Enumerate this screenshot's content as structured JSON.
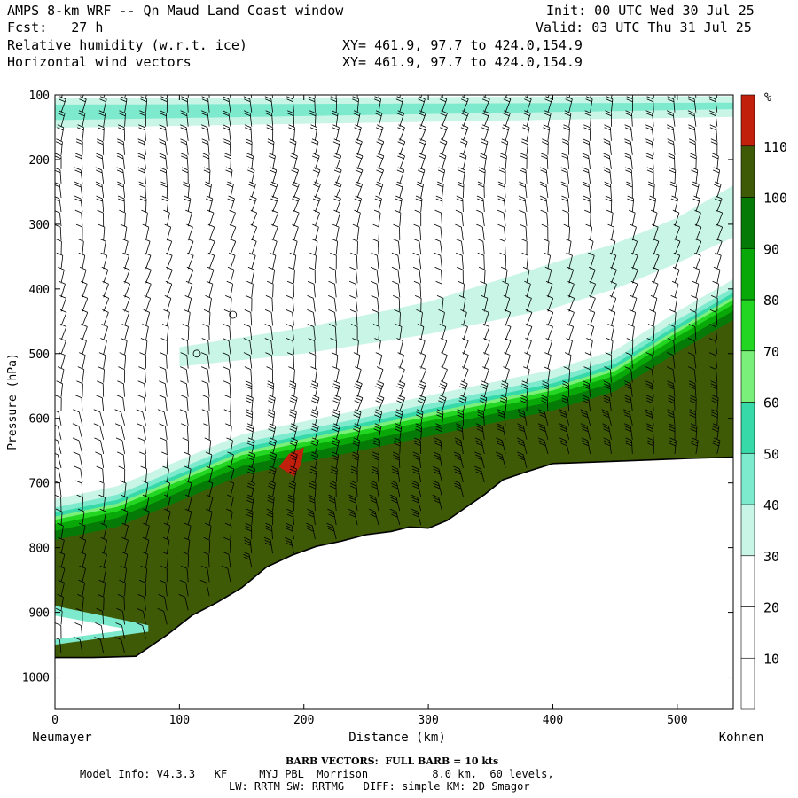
{
  "header": {
    "title": "AMPS 8-km WRF -- Qn Maud Land Coast window",
    "init": "Init: 00 UTC Wed 30 Jul 25",
    "fcst": "Fcst:   27 h",
    "valid": "Valid: 03 UTC Thu 31 Jul 25",
    "field1": "Relative humidity (w.r.t. ice)",
    "field1_xy": "XY= 461.9, 97.7 to 424.0,154.9",
    "field2": "Horizontal wind vectors",
    "field2_xy": "XY= 461.9, 97.7 to 424.0,154.9"
  },
  "footer": {
    "barb": "BARB VECTORS:  FULL BARB = 10 kts",
    "model1": "Model Info: V4.3.3   KF     MYJ PBL  Morrison          8.0 km,  60 levels,",
    "model2": "LW: RRTM SW: RRTMG   DIFF: simple KM: 2D Smagor"
  },
  "chart_data": {
    "type": "heatmap",
    "title": "Relative humidity (w.r.t. ice)",
    "xlabel": "Distance (km)",
    "ylabel": "Pressure (hPa)",
    "x_start_label": "Neumayer",
    "x_end_label": "Kohnen",
    "xlim": [
      0,
      545
    ],
    "ylim": [
      1050,
      100
    ],
    "xticks": [
      0,
      100,
      200,
      300,
      400,
      500
    ],
    "yticks": [
      100,
      200,
      300,
      400,
      500,
      600,
      700,
      800,
      900,
      1000
    ],
    "colorbar": {
      "unit": "%",
      "levels": [
        10,
        20,
        30,
        40,
        50,
        60,
        70,
        80,
        90,
        100,
        110
      ],
      "colors": [
        "#ffffff",
        "#ffffff",
        "#ffffff",
        "#c8f5e6",
        "#7deacd",
        "#38d9a9",
        "#7af07a",
        "#22d622",
        "#08a808",
        "#067a06",
        "#3f5a07",
        "#c0200c"
      ]
    },
    "terrain": {
      "x": [
        0,
        30,
        65,
        90,
        110,
        130,
        150,
        170,
        190,
        210,
        230,
        250,
        270,
        285,
        300,
        315,
        330,
        345,
        360,
        380,
        400,
        430,
        470,
        510,
        545
      ],
      "p": [
        970,
        970,
        968,
        935,
        905,
        885,
        862,
        830,
        812,
        798,
        790,
        780,
        775,
        768,
        770,
        758,
        738,
        718,
        695,
        682,
        670,
        668,
        665,
        662,
        660
      ]
    },
    "moist_layer": {
      "top_x": [
        0,
        50,
        100,
        150,
        200,
        250,
        300,
        350,
        400,
        450,
        500,
        545
      ],
      "top_p": [
        760,
        740,
        700,
        660,
        640,
        620,
        600,
        580,
        560,
        530,
        470,
        420
      ],
      "bot_p": [
        820,
        830,
        820,
        810,
        790,
        770,
        760,
        720,
        680,
        670,
        665,
        660
      ]
    },
    "cirrus_top": {
      "x": [
        0,
        545
      ],
      "p_top": [
        115,
        112
      ],
      "p_bot": [
        145,
        128
      ]
    },
    "mid_band": {
      "x": [
        100,
        200,
        300,
        400,
        450,
        500,
        545
      ],
      "p_top": [
        490,
        460,
        420,
        360,
        330,
        290,
        240
      ],
      "p_bot": [
        520,
        500,
        470,
        430,
        400,
        360,
        320
      ]
    },
    "saturated_patch": {
      "x": [
        180,
        200
      ],
      "p": [
        645,
        690
      ],
      "rh": 112
    }
  }
}
